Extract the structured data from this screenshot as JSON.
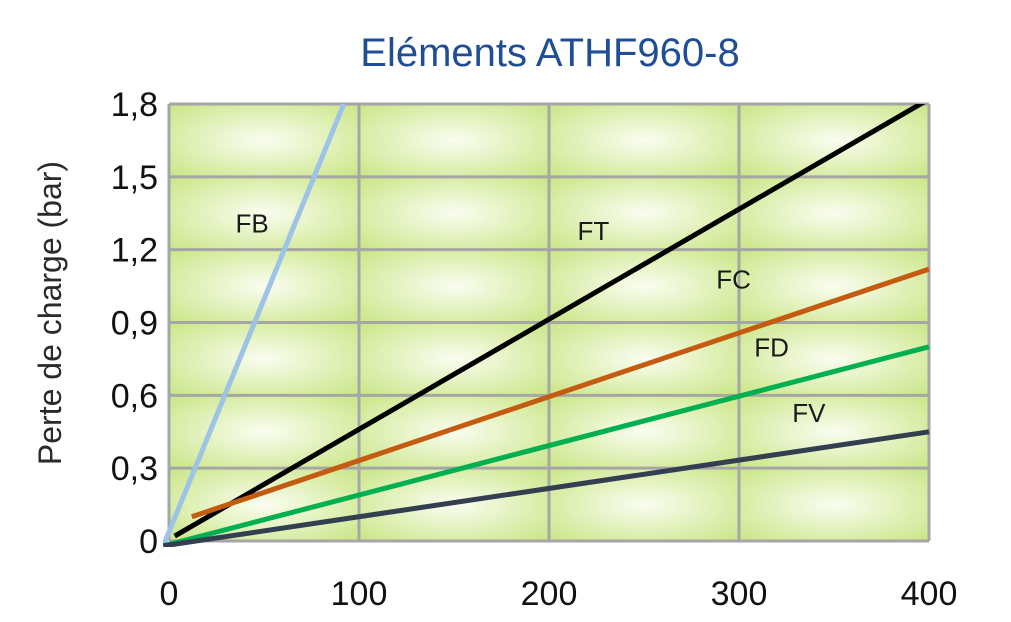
{
  "chart_data": {
    "type": "line",
    "title": "Eléments ATHF960-8",
    "xlabel": "",
    "ylabel": "Perte de charge (bar)",
    "xlim": [
      0,
      400
    ],
    "ylim": [
      0,
      1.8
    ],
    "x_ticks": [
      0,
      100,
      200,
      300,
      400
    ],
    "x_tick_labels": [
      "0",
      "100",
      "200",
      "300",
      "400"
    ],
    "y_ticks": [
      0,
      0.3,
      0.6,
      0.9,
      1.2,
      1.5,
      1.8
    ],
    "y_tick_labels": [
      "0",
      "0,3",
      "0,6",
      "0,9",
      "1,2",
      "1,5",
      "1,8"
    ],
    "grid": true,
    "legend": "none",
    "series": [
      {
        "name": "FB",
        "color": "#9dc3e6",
        "points": [
          [
            -3,
            -0.02
          ],
          [
            92,
            1.8
          ]
        ],
        "label_at": [
          35,
          1.27
        ]
      },
      {
        "name": "FT",
        "color": "#000000",
        "points": [
          [
            3,
            0.02
          ],
          [
            400,
            1.82
          ]
        ],
        "label_at": [
          215,
          1.24
        ]
      },
      {
        "name": "FC",
        "color": "#c55a11",
        "points": [
          [
            12,
            0.1
          ],
          [
            400,
            1.12
          ]
        ],
        "label_at": [
          288,
          1.04
        ]
      },
      {
        "name": "FD",
        "color": "#00b050",
        "points": [
          [
            -3,
            -0.02
          ],
          [
            400,
            0.8
          ]
        ],
        "label_at": [
          308,
          0.76
        ]
      },
      {
        "name": "FV",
        "color": "#333f50",
        "points": [
          [
            -3,
            -0.02
          ],
          [
            400,
            0.45
          ]
        ],
        "label_at": [
          328,
          0.49
        ]
      }
    ],
    "colors": {
      "plot_gradient_inner": "#fafdf0",
      "plot_gradient_outer": "#c6e47e",
      "grid": "#a6a6a6",
      "title": "#1f4e96"
    }
  }
}
